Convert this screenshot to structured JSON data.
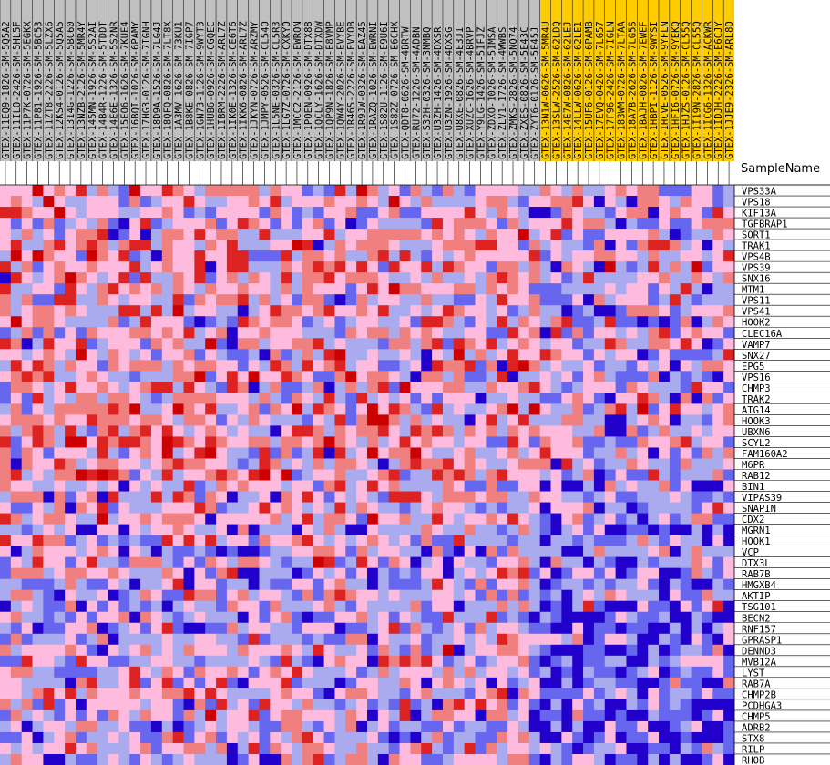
{
  "chart_data": {
    "type": "heatmap",
    "axis_title": "SampleName",
    "colors": {
      "group_normal": "#c0c0c0",
      "group_highlight": "#ffcc00",
      "scale": [
        "#2200cc",
        "#6666ee",
        "#aaaaee",
        "#ffbbdd",
        "#f08080",
        "#dd2222",
        "#cc0000"
      ],
      "grid_line": "#000000"
    },
    "columns": [
      {
        "label": "GTEX-11EQ9-1826-SM-5Q5A2",
        "group": "normal"
      },
      {
        "label": "GTEX-11ILO-2426-SM-5HL5F",
        "group": "normal"
      },
      {
        "label": "GTEX-11P7K-0726-SM-5EGKX",
        "group": "normal"
      },
      {
        "label": "GTEX-11P81-1926-SM-5BC53",
        "group": "normal"
      },
      {
        "label": "GTEX-11ZT8-2226-SM-5LZX6",
        "group": "normal"
      },
      {
        "label": "GTEX-12KS4-0126-SM-5Q5A5",
        "group": "normal"
      },
      {
        "label": "GTEX-1314G-1226-SM-5BC60",
        "group": "normal"
      },
      {
        "label": "GTEX-13NZB-2126-SM-5MR4Y",
        "group": "normal"
      },
      {
        "label": "GTEX-145MN-1926-SM-5S2AI",
        "group": "normal"
      },
      {
        "label": "GTEX-14B4R-1226-SM-5TDDT",
        "group": "normal"
      },
      {
        "label": "GTEX-14E6E-1326-SM-5S2NR",
        "group": "normal"
      },
      {
        "label": "GTEX-15EO6-1626-SM-7KUE4",
        "group": "normal"
      },
      {
        "label": "GTEX-16BQI-1026-SM-6PAMY",
        "group": "normal"
      },
      {
        "label": "GTEX-17HG3-0126-SM-7IGNH",
        "group": "normal"
      },
      {
        "label": "GTEX-18D9A-1526-SM-7LG4J",
        "group": "normal"
      },
      {
        "label": "GTEX-18QFQ-0826-SM-7LT8X",
        "group": "normal"
      },
      {
        "label": "GTEX-1A3MV-1626-SM-73KU1",
        "group": "normal"
      },
      {
        "label": "GTEX-1B8KE-0826-SM-7IGP7",
        "group": "normal"
      },
      {
        "label": "GTEX-1GN73-1126-SM-9WYT3",
        "group": "normal"
      },
      {
        "label": "GTEX-1HUB6-0926-SM-CGQEC",
        "group": "normal"
      },
      {
        "label": "GTEX-1IBRM-2226-SM-ARL7Z",
        "group": "normal"
      },
      {
        "label": "GTEX-1IK0E-1326-SM-CE6T6",
        "group": "normal"
      },
      {
        "label": "GTEX-1IKK6-0826-SM-ARL7Z",
        "group": "normal"
      },
      {
        "label": "GTEX-1JKYN-0726-SM-ARZMY",
        "group": "normal"
      },
      {
        "label": "GTEX-1JMPY-0526-SM-CL54O",
        "group": "normal"
      },
      {
        "label": "GTEX-1L5NE-0326-SM-CL5R3",
        "group": "normal"
      },
      {
        "label": "GTEX-1LG7Z-0726-SM-CXKYO",
        "group": "normal"
      },
      {
        "label": "GTEX-1MCC2-2126-SM-EWRON",
        "group": "normal"
      },
      {
        "label": "GTEX-1POEN-0926-SM-DTX88",
        "group": "normal"
      },
      {
        "label": "GTEX-1QCLY-1626-SM-DTXDW",
        "group": "normal"
      },
      {
        "label": "GTEX-1QP9N-1826-SM-E8VMP",
        "group": "normal"
      },
      {
        "label": "GTEX-1QW4Y-2026-SM-EVYBE",
        "group": "normal"
      },
      {
        "label": "GTEX-1R46S-2226-SM-EVYOB",
        "group": "normal"
      },
      {
        "label": "GTEX-1R9JW-0326-SM-EAZ45",
        "group": "normal"
      },
      {
        "label": "GTEX-1RAZQ-1026-SM-EWRNI",
        "group": "normal"
      },
      {
        "label": "GTEX-1S82U-1126-SM-E9U6I",
        "group": "normal"
      },
      {
        "label": "GTEX-1S82Z-0726-SM-E6CHX",
        "group": "normal"
      },
      {
        "label": "GTEX-QDT8-0626-SM-4BRTW",
        "group": "normal"
      },
      {
        "label": "GTEX-RU72-1226-SM-4ADBN",
        "group": "normal"
      },
      {
        "label": "GTEX-S32H-0326-SM-3NMBQ",
        "group": "normal"
      },
      {
        "label": "GTEX-U3ZH-1426-SM-4DXSR",
        "group": "normal"
      },
      {
        "label": "GTEX-U3ZN-1926-SM-4DXSG",
        "group": "normal"
      },
      {
        "label": "GTEX-U8XE-0826-SM-4E3JI",
        "group": "normal"
      },
      {
        "label": "GTEX-XUZC-1626-SM-4BRVP",
        "group": "normal"
      },
      {
        "label": "GTEX-Y9LG-1426-SM-5IFJZ",
        "group": "normal"
      },
      {
        "label": "GTEX-ZDXO-1026-SM-5IMSA",
        "group": "normal"
      },
      {
        "label": "GTEX-ZLV1-1726-SM-4WWBS",
        "group": "normal"
      },
      {
        "label": "GTEX-ZMKS-2826-SM-5NQ74",
        "group": "normal"
      },
      {
        "label": "GTEX-ZXES-0826-SM-5E43C",
        "group": "normal"
      },
      {
        "label": "GTEX-ZYT6-0126-SM-5E45J",
        "group": "normal"
      },
      {
        "label": "GTEX-13N1W-0626-SM-5MR4U",
        "group": "highlight"
      },
      {
        "label": "GTEX-13SLW-2526-SM-62LDQ",
        "group": "highlight"
      },
      {
        "label": "GTEX-14E7W-0826-SM-62LEJ",
        "group": "highlight"
      },
      {
        "label": "GTEX-14LLW-0626-SM-62LE1",
        "group": "highlight"
      },
      {
        "label": "GTEX-15UF6-0126-SM-6PAMB",
        "group": "highlight"
      },
      {
        "label": "GTEX-17EVQ-0426-SM-7LG57",
        "group": "highlight"
      },
      {
        "label": "GTEX-17F96-2426-SM-7IGLN",
        "group": "highlight"
      },
      {
        "label": "GTEX-183WM-0726-SM-7LTAA",
        "group": "highlight"
      },
      {
        "label": "GTEX-18A7B-2626-SM-7LG5S",
        "group": "highlight"
      },
      {
        "label": "GTEX-1BAJH-0826-SM-7EWEF",
        "group": "highlight"
      },
      {
        "label": "GTEX-1HBPI-1126-SM-9WYSI",
        "group": "highlight"
      },
      {
        "label": "GTEX-1HCVE-0526-SM-9YFLN",
        "group": "highlight"
      },
      {
        "label": "GTEX-1HFI6-0726-SM-9YEKQ",
        "group": "highlight"
      },
      {
        "label": "GTEX-1HJZS-0126-SM-CL55Q",
        "group": "highlight"
      },
      {
        "label": "GTEX-1I19N-2826-SM-CL55Q",
        "group": "highlight"
      },
      {
        "label": "GTEX-1ICG6-1326-SM-ACKWR",
        "group": "highlight"
      },
      {
        "label": "GTEX-1IDJH-2226-SM-E6CJY",
        "group": "highlight"
      },
      {
        "label": "GTEX-1JJE9-2326-SM-ARL8Q",
        "group": "highlight"
      }
    ],
    "rows": [
      "VPS33A",
      "VPS18",
      "KIF13A",
      "TGFBRAP1",
      "SORT1",
      "TRAK1",
      "VPS4B",
      "VPS39",
      "SNX16",
      "MTM1",
      "VPS11",
      "VPS41",
      "HOOK2",
      "CLEC16A",
      "VAMP7",
      "SNX27",
      "EPG5",
      "VPS16",
      "CHMP3",
      "TRAK2",
      "ATG14",
      "HOOK3",
      "UBXN6",
      "SCYL2",
      "FAM160A2",
      "M6PR",
      "RAB12",
      "BIN1",
      "VIPAS39",
      "SNAPIN",
      "CDX2",
      "MGRN1",
      "HOOK1",
      "VCP",
      "DTX3L",
      "RAB7B",
      "HMGXB4",
      "AKTIP",
      "TSG101",
      "BECN2",
      "RNF157",
      "GPRASP1",
      "DENND3",
      "MVB12A",
      "LYST",
      "RAB7A",
      "CHMP2B",
      "PCDHGA3",
      "CHMP5",
      "ADRB2",
      "STX8",
      "RILP",
      "RHOB"
    ],
    "value_range": [
      -3,
      3
    ],
    "seed": 911840
  }
}
